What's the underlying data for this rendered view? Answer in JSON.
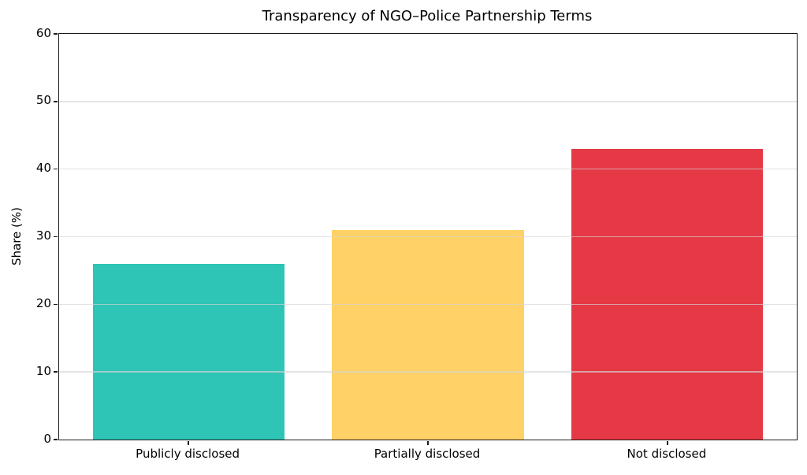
{
  "chart_data": {
    "type": "bar",
    "title": "Transparency of NGO–Police Partnership Terms",
    "xlabel": "",
    "ylabel": "Share (%)",
    "categories": [
      "Publicly disclosed",
      "Partially disclosed",
      "Not disclosed"
    ],
    "values": [
      26,
      31,
      43
    ],
    "bar_colors": [
      "#2ec4b6",
      "#ffd166",
      "#e63946"
    ],
    "ylim": [
      0,
      60
    ],
    "yticks": [
      0,
      10,
      20,
      30,
      40,
      50,
      60
    ],
    "grid": "horizontal gridlines at y-ticks, drawn above bars",
    "gridline_color": "#e8e8e8",
    "frame": "full box (all four spines)",
    "legend": "none"
  }
}
